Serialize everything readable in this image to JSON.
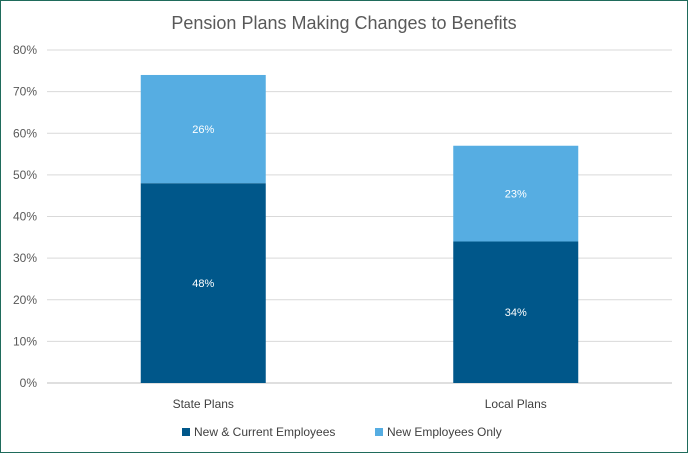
{
  "chart_data": {
    "type": "bar",
    "stacked": true,
    "title": "Pension Plans Making Changes to Benefits",
    "categories": [
      "State Plans",
      "Local Plans"
    ],
    "series": [
      {
        "name": "New & Current Employees",
        "values": [
          48,
          34
        ],
        "labels": [
          "48%",
          "34%"
        ],
        "color": "#00578a"
      },
      {
        "name": "New Employees Only",
        "values": [
          26,
          23
        ],
        "labels": [
          "26%",
          "23%"
        ],
        "color": "#56ade2"
      }
    ],
    "y_ticks": [
      "0%",
      "10%",
      "20%",
      "30%",
      "40%",
      "50%",
      "60%",
      "70%",
      "80%"
    ],
    "ylim": [
      0,
      80
    ],
    "grid": true,
    "legend_position": "bottom"
  }
}
